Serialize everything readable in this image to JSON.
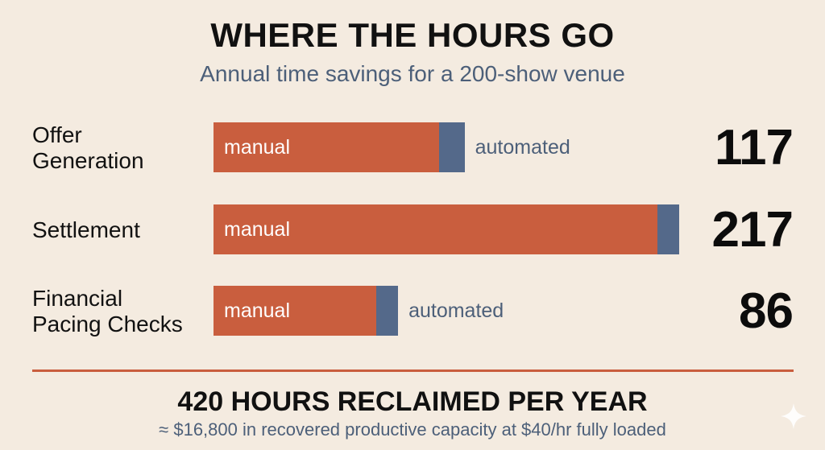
{
  "chart_data": {
    "type": "bar",
    "title": "WHERE THE HOURS GO",
    "subtitle": "Annual time savings for a 200-show venue",
    "orientation": "horizontal",
    "stacked": true,
    "categories": [
      "Offer\nGeneration",
      "Settlement",
      "Financial\nPacing Checks"
    ],
    "series": [
      {
        "name": "manual",
        "values": [
          105,
          207,
          76
        ]
      },
      {
        "name": "automated",
        "values": [
          12,
          10,
          10
        ]
      }
    ],
    "segment_labels": {
      "manual": [
        "manual",
        "manual",
        "manual"
      ],
      "automated": [
        "automated",
        "",
        "automated"
      ]
    },
    "totals": [
      "117",
      "217",
      "86"
    ],
    "xlim": [
      0,
      217
    ],
    "grid": false,
    "legend": "none"
  },
  "summary": {
    "headline": "420 HOURS RECLAIMED PER YEAR",
    "note": "≈ $16,800 in recovered productive capacity at $40/hr fully loaded"
  },
  "colors": {
    "background": "#f4ebe0",
    "manual": "#c95e3e",
    "automated": "#54698a",
    "divider": "#c95e3e",
    "subtitle": "#4c5f79"
  },
  "icons": {
    "corner": "sparkle-icon"
  }
}
